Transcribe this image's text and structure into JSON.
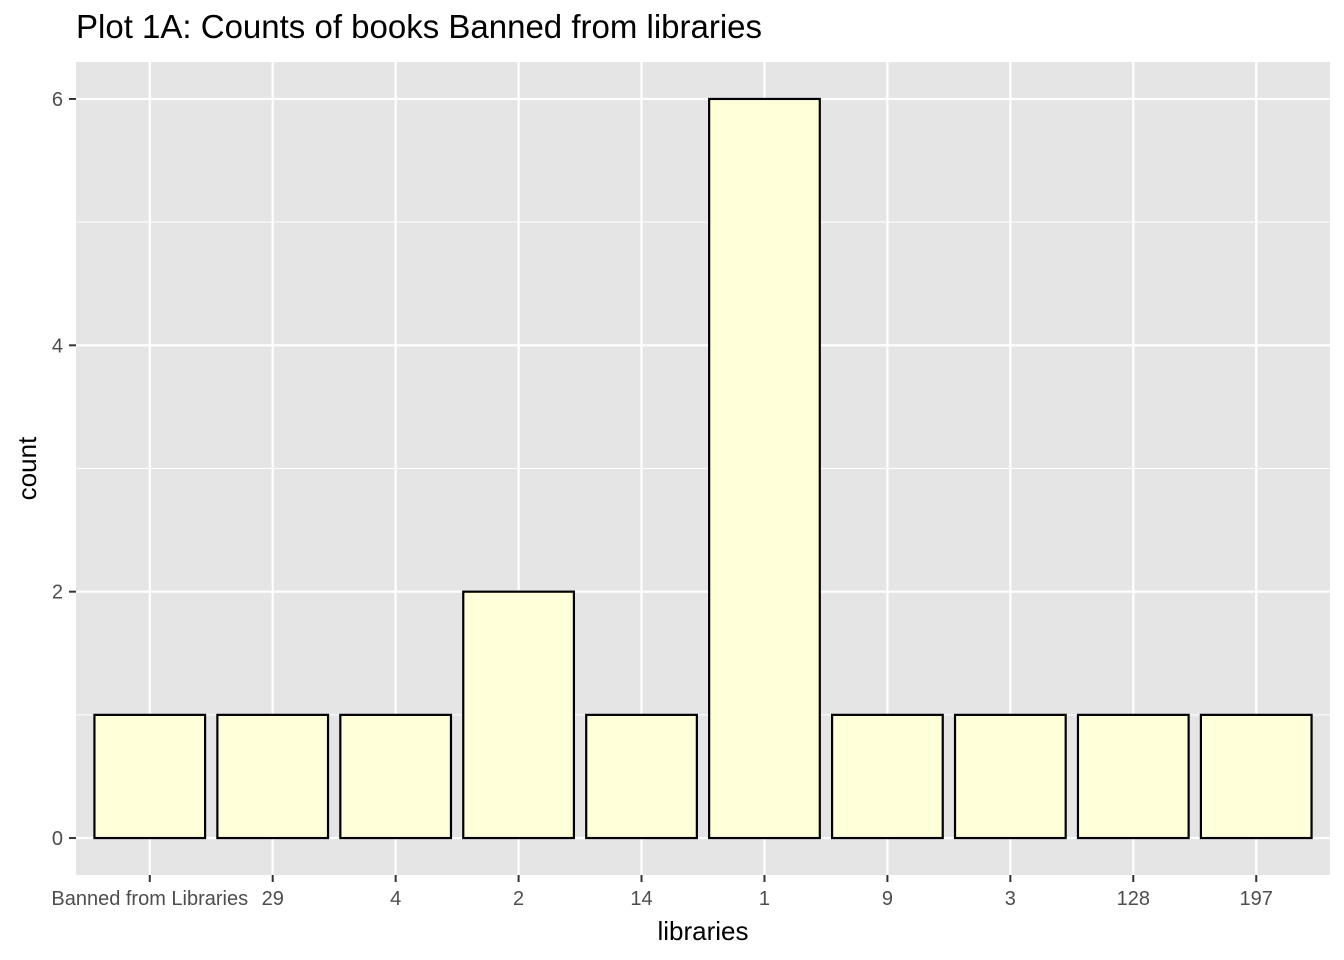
{
  "chart_data": {
    "type": "bar",
    "title": "Plot 1A: Counts of books Banned from libraries",
    "xlabel": "libraries",
    "ylabel": "count",
    "categories": [
      "Banned from Libraries",
      "29",
      "4",
      "2",
      "14",
      "1",
      "9",
      "3",
      "128",
      "197"
    ],
    "values": [
      1,
      1,
      1,
      2,
      1,
      6,
      1,
      1,
      1,
      1
    ],
    "ylim": [
      -0.3,
      6.3
    ],
    "yticks": [
      0,
      2,
      4,
      6
    ],
    "grid": true,
    "colors": {
      "panel_background": "#e5e5e5",
      "grid": "#ffffff",
      "bar_fill": "#ffffd9",
      "bar_outline": "#000000"
    }
  }
}
